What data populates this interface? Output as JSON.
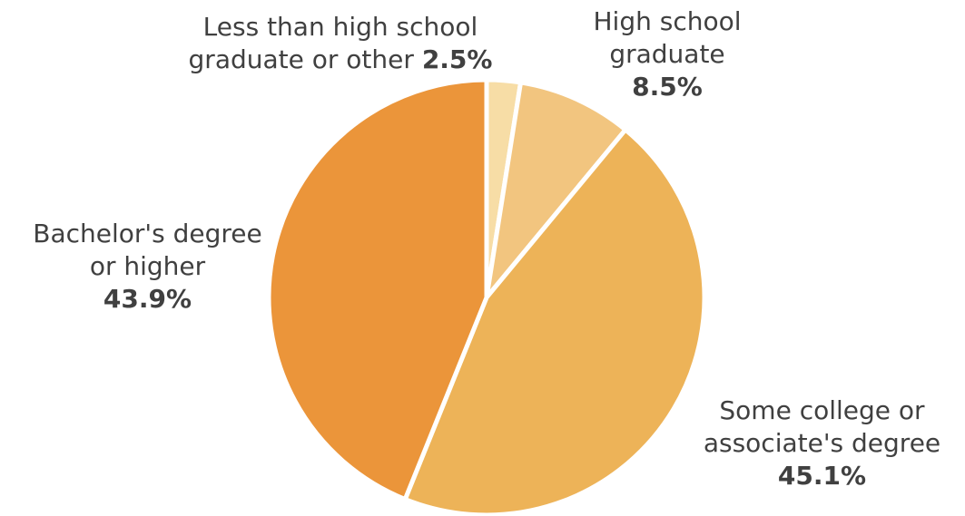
{
  "chart_data": {
    "type": "pie",
    "start_angle_deg": 0,
    "direction": "clockwise",
    "slices": [
      {
        "label": "Less than high school graduate or other",
        "label_line1": "Less than high school",
        "label_line2": "graduate or other",
        "value": 2.5,
        "value_label": "2.5%",
        "color": "#F7DDA6"
      },
      {
        "label": "High school graduate",
        "label_line1": "High school",
        "label_line2": "graduate",
        "value": 8.5,
        "value_label": "8.5%",
        "color": "#F2C57F"
      },
      {
        "label": "Some college or associate's degree",
        "label_line1": "Some college or",
        "label_line2": "associate's degree",
        "value": 45.1,
        "value_label": "45.1%",
        "color": "#EDB358"
      },
      {
        "label": "Bachelor's degree or higher",
        "label_line1": "Bachelor's degree",
        "label_line2": "or higher",
        "value": 43.9,
        "value_label": "43.9%",
        "color": "#EB953A"
      }
    ]
  }
}
